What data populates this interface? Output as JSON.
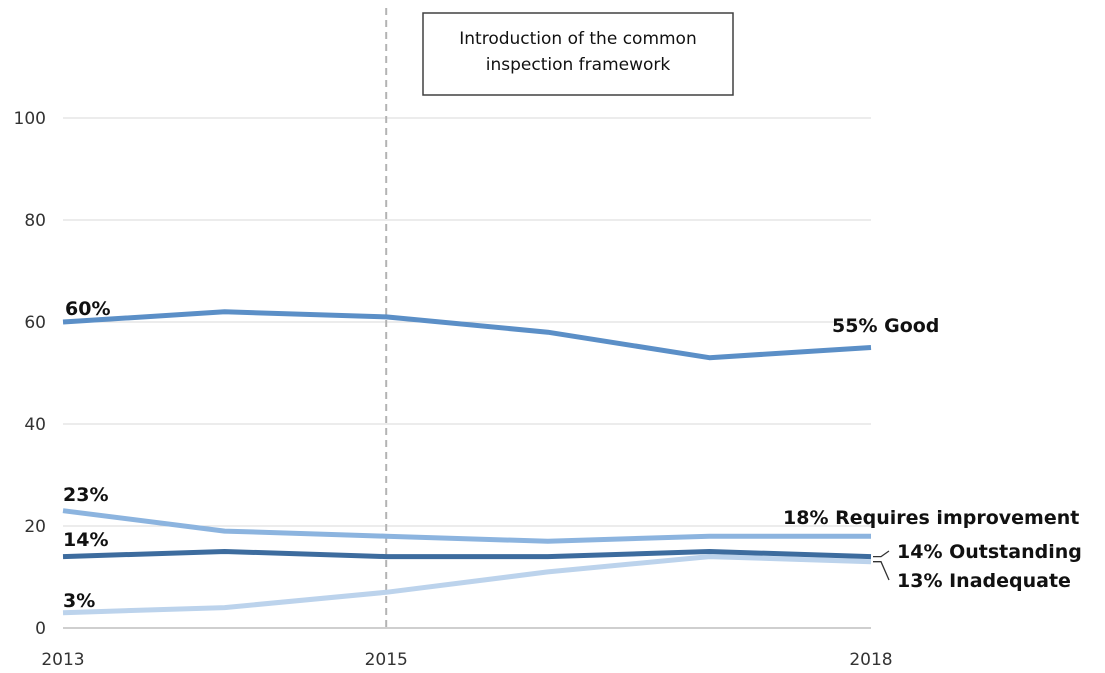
{
  "chart_data": {
    "type": "line",
    "x": [
      2013,
      2014,
      2015,
      2016,
      2017,
      2018
    ],
    "x_tick_labels": [
      "2013",
      "2015",
      "2018"
    ],
    "x_tick_values": [
      2013,
      2015,
      2018
    ],
    "y_tick_labels": [
      "0",
      "20",
      "40",
      "60",
      "80",
      "100"
    ],
    "y_tick_values": [
      0,
      20,
      40,
      60,
      80,
      100
    ],
    "ylim": [
      0,
      100
    ],
    "grid": "horizontal",
    "series": [
      {
        "id": "good",
        "values": [
          60,
          62,
          61,
          58,
          53,
          55
        ],
        "color": "#5b8fc7",
        "start_label": "60%",
        "end_label": "55% Good"
      },
      {
        "id": "requires-improvement",
        "values": [
          23,
          19,
          18,
          17,
          18,
          18
        ],
        "color": "#8cb4df",
        "start_label": "23%",
        "end_label": "18% Requires improvement"
      },
      {
        "id": "outstanding",
        "values": [
          14,
          15,
          14,
          14,
          15,
          14
        ],
        "color": "#3d6c9e",
        "start_label": "14%",
        "end_label": "14% Outstanding"
      },
      {
        "id": "inadequate",
        "values": [
          3,
          4,
          7,
          11,
          14,
          13
        ],
        "color": "#bcd3ec",
        "start_label": "3%",
        "end_label": "13% Inadequate"
      }
    ],
    "annotation": {
      "text_lines": [
        "Introduction of the common",
        "inspection framework"
      ],
      "x": 2015
    }
  }
}
